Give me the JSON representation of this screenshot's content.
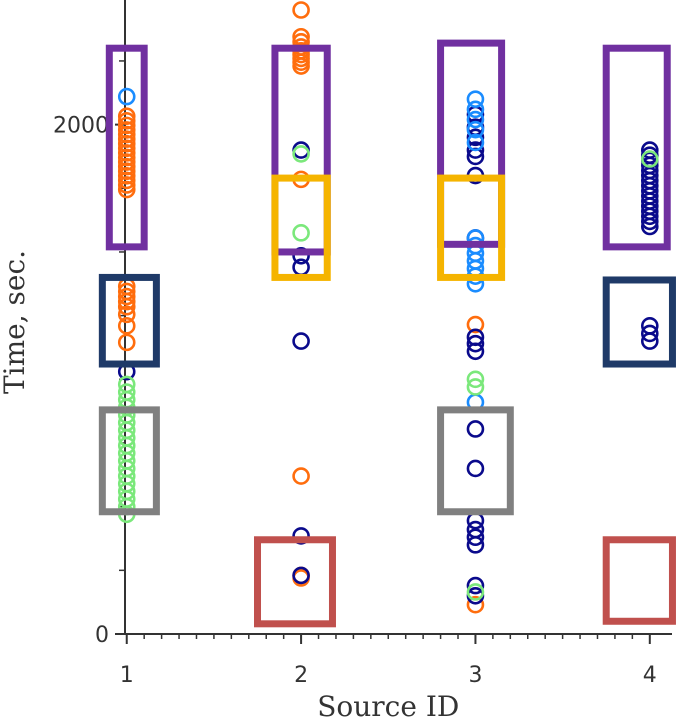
{
  "chart_data": {
    "type": "scatter",
    "xlabel": "Source ID",
    "ylabel": "Time, sec.",
    "xlim": [
      0.99,
      4.07
    ],
    "ylim": [
      0,
      2450
    ],
    "x_ticks": [
      1,
      2,
      3,
      4
    ],
    "x_tick_labels": [
      "1",
      "2",
      "3",
      "4"
    ],
    "y_ticks": [
      0,
      2000
    ],
    "y_tick_labels": [
      "0",
      "2000"
    ],
    "grid": false,
    "marker": "hollow-circle",
    "colors": {
      "navy": "#0a0a8c",
      "blue": "#1a8cff",
      "green": "#7be87b",
      "orange": "#ff6d0d"
    },
    "series": [
      {
        "color": "#ff6d0d",
        "points": [
          [
            1,
            1745
          ],
          [
            1,
            1763
          ],
          [
            1,
            1781
          ],
          [
            1,
            1799
          ],
          [
            1,
            1817
          ],
          [
            1,
            1835
          ],
          [
            1,
            1853
          ],
          [
            1,
            1871
          ],
          [
            1,
            1889
          ],
          [
            1,
            1907
          ],
          [
            1,
            1925
          ],
          [
            1,
            1943
          ],
          [
            1,
            1961
          ],
          [
            1,
            1979
          ],
          [
            1,
            1997
          ],
          [
            1,
            2015
          ],
          [
            1,
            2033
          ],
          [
            1,
            1365
          ],
          [
            1,
            1345
          ],
          [
            1,
            1325
          ],
          [
            1,
            1305
          ],
          [
            1,
            1285
          ],
          [
            1,
            1255
          ],
          [
            1,
            1210
          ],
          [
            1,
            1145
          ],
          [
            2,
            2450
          ],
          [
            2,
            2345
          ],
          [
            2,
            2325
          ],
          [
            2,
            2305
          ],
          [
            2,
            2290
          ],
          [
            2,
            2275
          ],
          [
            2,
            2260
          ],
          [
            2,
            2245
          ],
          [
            2,
            2230
          ],
          [
            2,
            1785
          ],
          [
            2,
            620
          ],
          [
            2,
            230
          ],
          [
            2,
            220
          ],
          [
            3,
            1215
          ],
          [
            3,
            115
          ]
        ]
      },
      {
        "color": "#0a0a8c",
        "points": [
          [
            1,
            1030
          ],
          [
            2,
            1900
          ],
          [
            2,
            1485
          ],
          [
            2,
            1440
          ],
          [
            2,
            1150
          ],
          [
            2,
            385
          ],
          [
            2,
            230
          ],
          [
            3,
            2040
          ],
          [
            3,
            1990
          ],
          [
            3,
            1950
          ],
          [
            3,
            1900
          ],
          [
            3,
            1875
          ],
          [
            3,
            1800
          ],
          [
            3,
            1555
          ],
          [
            3,
            1165
          ],
          [
            3,
            1140
          ],
          [
            3,
            1110
          ],
          [
            3,
            805
          ],
          [
            3,
            650
          ],
          [
            3,
            445
          ],
          [
            3,
            410
          ],
          [
            3,
            380
          ],
          [
            3,
            350
          ],
          [
            3,
            190
          ],
          [
            3,
            150
          ],
          [
            4,
            1900
          ],
          [
            4,
            1880
          ],
          [
            4,
            1860
          ],
          [
            4,
            1840
          ],
          [
            4,
            1820
          ],
          [
            4,
            1800
          ],
          [
            4,
            1780
          ],
          [
            4,
            1760
          ],
          [
            4,
            1740
          ],
          [
            4,
            1720
          ],
          [
            4,
            1700
          ],
          [
            4,
            1680
          ],
          [
            4,
            1660
          ],
          [
            4,
            1640
          ],
          [
            4,
            1620
          ],
          [
            4,
            1600
          ],
          [
            4,
            1210
          ],
          [
            4,
            1180
          ],
          [
            4,
            1150
          ]
        ]
      },
      {
        "color": "#1a8cff",
        "points": [
          [
            1,
            2110
          ],
          [
            3,
            2100
          ],
          [
            3,
            2060
          ],
          [
            3,
            2020
          ],
          [
            3,
            1980
          ],
          [
            3,
            1930
          ],
          [
            3,
            1555
          ],
          [
            3,
            1525
          ],
          [
            3,
            1495
          ],
          [
            3,
            1465
          ],
          [
            3,
            1435
          ],
          [
            3,
            1405
          ],
          [
            3,
            1375
          ],
          [
            3,
            910
          ]
        ]
      },
      {
        "color": "#7be87b",
        "points": [
          [
            1,
            980
          ],
          [
            1,
            950
          ],
          [
            1,
            920
          ],
          [
            1,
            890
          ],
          [
            1,
            860
          ],
          [
            1,
            830
          ],
          [
            1,
            800
          ],
          [
            1,
            770
          ],
          [
            1,
            740
          ],
          [
            1,
            710
          ],
          [
            1,
            680
          ],
          [
            1,
            650
          ],
          [
            1,
            620
          ],
          [
            1,
            590
          ],
          [
            1,
            560
          ],
          [
            1,
            530
          ],
          [
            1,
            500
          ],
          [
            1,
            470
          ],
          [
            2,
            1885
          ],
          [
            2,
            1575
          ],
          [
            3,
            1000
          ],
          [
            3,
            970
          ],
          [
            3,
            165
          ],
          [
            4,
            1865
          ]
        ]
      }
    ],
    "annotation_boxes": [
      {
        "color": "#7030a0",
        "x": [
          0.9,
          1.1
        ],
        "y": [
          1520,
          2300
        ]
      },
      {
        "color": "#7030a0",
        "x": [
          1.85,
          2.15
        ],
        "y": [
          1500,
          2300
        ]
      },
      {
        "color": "#7030a0",
        "x": [
          2.8,
          3.15
        ],
        "y": [
          1530,
          2320
        ]
      },
      {
        "color": "#7030a0",
        "x": [
          3.75,
          4.1
        ],
        "y": [
          1520,
          2300
        ]
      },
      {
        "color": "#f5b400",
        "x": [
          1.85,
          2.15
        ],
        "y": [
          1400,
          1790
        ]
      },
      {
        "color": "#f5b400",
        "x": [
          2.8,
          3.15
        ],
        "y": [
          1400,
          1790
        ]
      },
      {
        "color": "#1f3a68",
        "x": [
          0.86,
          1.17
        ],
        "y": [
          1060,
          1400
        ]
      },
      {
        "color": "#1f3a68",
        "x": [
          3.75,
          4.13
        ],
        "y": [
          1060,
          1390
        ]
      },
      {
        "color": "#808080",
        "x": [
          0.86,
          1.17
        ],
        "y": [
          480,
          880
        ]
      },
      {
        "color": "#808080",
        "x": [
          2.8,
          3.2
        ],
        "y": [
          480,
          880
        ]
      },
      {
        "color": "#c0504d",
        "x": [
          1.75,
          2.18
        ],
        "y": [
          40,
          370
        ]
      },
      {
        "color": "#c0504d",
        "x": [
          3.75,
          4.13
        ],
        "y": [
          50,
          370
        ]
      }
    ]
  }
}
